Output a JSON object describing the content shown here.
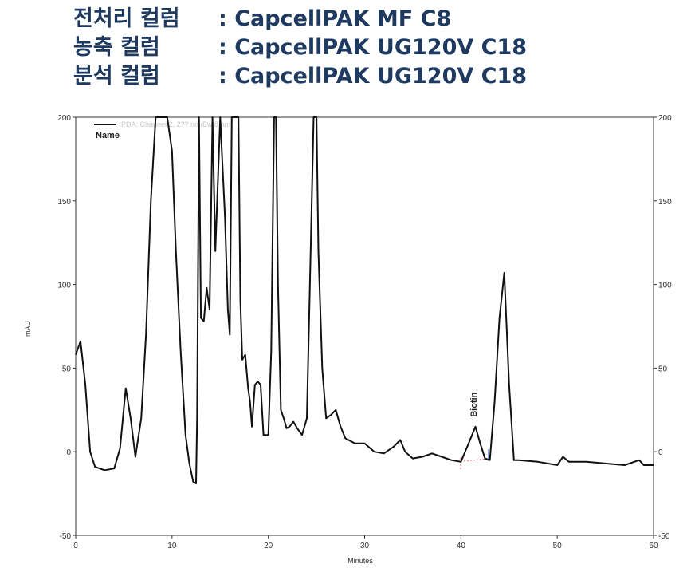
{
  "header": {
    "lines": [
      {
        "key": "전처리 컬럼",
        "value": ": CapcellPAK MF C8"
      },
      {
        "key": "농축 컬럼",
        "value": ": CapcellPAK UG120V C18"
      },
      {
        "key": "분석 컬럼",
        "value": ": CapcellPAK UG120V C18"
      }
    ]
  },
  "chart_data": {
    "type": "line",
    "xlabel": "Minutes",
    "ylabel": "mAU",
    "xlim": [
      0,
      60
    ],
    "ylim": [
      -50,
      200
    ],
    "xticks": [
      0,
      10,
      20,
      30,
      40,
      50,
      60
    ],
    "yticks": [
      -50,
      0,
      50,
      100,
      150,
      200
    ],
    "legend": {
      "series_label": "PDA: Channel 2, 2?? nm/Bw:8 nm",
      "title": "Name",
      "placement": "top-left"
    },
    "series": [
      {
        "color": "#111111",
        "x": [
          0,
          0.5,
          1.0,
          1.5,
          2.0,
          3.0,
          4.0,
          4.6,
          5.2,
          5.7,
          6.2,
          6.8,
          7.3,
          7.8,
          8.3,
          8.8,
          9.2,
          9.5,
          10.0,
          10.4,
          10.9,
          11.4,
          11.8,
          12.2,
          12.5,
          12.6,
          12.8,
          13.0,
          13.3,
          13.6,
          13.9,
          14.2,
          14.5,
          15.0,
          15.5,
          15.8,
          16.0,
          16.2,
          16.6,
          16.9,
          17.1,
          17.3,
          17.6,
          17.9,
          18.1,
          18.3,
          18.6,
          18.9,
          19.2,
          19.5,
          20.0,
          20.3,
          20.6,
          20.8,
          21.0,
          21.3,
          21.6,
          21.9,
          22.2,
          22.6,
          23.0,
          23.5,
          24.0,
          24.4,
          24.7,
          25.0,
          25.2,
          25.6,
          26.0,
          26.5,
          27.0,
          27.5,
          28.0,
          29.0,
          30.0,
          31.0,
          32.0,
          33.0,
          33.7,
          34.2,
          35.0,
          36.0,
          37.0,
          38.0,
          39.0,
          40.0,
          40.8,
          41.5,
          42.0,
          42.5,
          43.0,
          43.5,
          44.0,
          44.5,
          45.0,
          45.5,
          46.0,
          48.0,
          50.0,
          50.6,
          51.2,
          53.0,
          55.0,
          57.0,
          58.0,
          58.5,
          59.0,
          60.0
        ],
        "y": [
          58,
          66,
          40,
          0,
          -9,
          -11,
          -10,
          2,
          38,
          20,
          -3,
          20,
          70,
          150,
          200,
          200,
          200,
          200,
          180,
          120,
          60,
          10,
          -7,
          -18,
          -19,
          20,
          200,
          80,
          78,
          98,
          85,
          200,
          120,
          200,
          140,
          85,
          70,
          200,
          200,
          200,
          90,
          55,
          58,
          38,
          30,
          15,
          40,
          42,
          40,
          10,
          10,
          60,
          200,
          200,
          100,
          25,
          20,
          14,
          15,
          18,
          14,
          10,
          20,
          120,
          200,
          200,
          120,
          50,
          20,
          22,
          25,
          15,
          8,
          5,
          5,
          0,
          -1,
          3,
          7,
          0,
          -4,
          -3,
          -1,
          -3,
          -5,
          -6,
          5,
          15,
          5,
          -4,
          -5,
          30,
          80,
          107,
          40,
          -5,
          -5,
          -6,
          -8,
          -3,
          -6,
          -6,
          -7,
          -8,
          -6,
          -5,
          -8,
          -8
        ]
      }
    ],
    "annotations": [
      {
        "text": "Biotin",
        "x": 41.3,
        "y": 15
      }
    ]
  }
}
